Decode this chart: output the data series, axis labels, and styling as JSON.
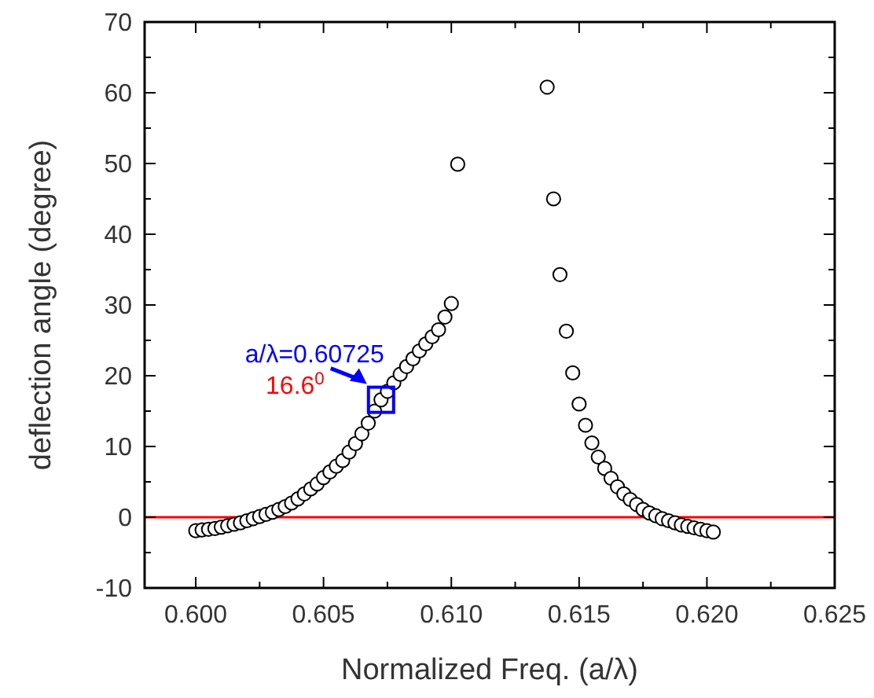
{
  "chart_data": {
    "type": "scatter",
    "xlabel": "Normalized Freq. (a/λ)",
    "ylabel": "deflection angle (degree)",
    "marker": "circle",
    "xlim": [
      0.598,
      0.625
    ],
    "ylim": [
      -10,
      70
    ],
    "xticks": [
      {
        "value": 0.6,
        "label": "0.600"
      },
      {
        "value": 0.6025,
        "label": null
      },
      {
        "value": 0.605,
        "label": "0.605"
      },
      {
        "value": 0.6075,
        "label": null
      },
      {
        "value": 0.61,
        "label": "0.610"
      },
      {
        "value": 0.6125,
        "label": null
      },
      {
        "value": 0.615,
        "label": "0.615"
      },
      {
        "value": 0.6175,
        "label": null
      },
      {
        "value": 0.62,
        "label": "0.620"
      },
      {
        "value": 0.6225,
        "label": null
      },
      {
        "value": 0.625,
        "label": "0.625"
      }
    ],
    "yticks": [
      -10,
      {
        "value": -5,
        "label": null
      },
      0,
      {
        "value": 5,
        "label": null
      },
      10,
      {
        "value": 15,
        "label": null
      },
      20,
      {
        "value": 25,
        "label": null
      },
      30,
      {
        "value": 35,
        "label": null
      },
      40,
      {
        "value": 45,
        "label": null
      },
      50,
      {
        "value": 55,
        "label": null
      },
      60,
      {
        "value": 65,
        "label": null
      },
      70
    ],
    "series": [
      {
        "color": "#000000",
        "x": [
          0.6,
          0.60025,
          0.6005,
          0.60075,
          0.601,
          0.60125,
          0.6015,
          0.60175,
          0.602,
          0.60225,
          0.6025,
          0.60275,
          0.603,
          0.60325,
          0.6035,
          0.60375,
          0.604,
          0.60425,
          0.6045,
          0.60475,
          0.605,
          0.60525,
          0.6055,
          0.60575,
          0.606,
          0.60625,
          0.6065,
          0.60675,
          0.607,
          0.60725,
          0.6075,
          0.60775,
          0.608,
          0.60825,
          0.6085,
          0.60875,
          0.609,
          0.60925,
          0.6095,
          0.60975,
          0.61,
          0.61025,
          0.61375,
          0.614,
          0.61425,
          0.6145,
          0.61475,
          0.615,
          0.61525,
          0.6155,
          0.61575,
          0.616,
          0.61625,
          0.6165,
          0.61675,
          0.617,
          0.61725,
          0.6175,
          0.61775,
          0.618,
          0.61825,
          0.6185,
          0.61875,
          0.619,
          0.61925,
          0.6195,
          0.61975,
          0.62,
          0.62025
        ],
        "values": [
          -1.9,
          -1.8,
          -1.7,
          -1.6,
          -1.4,
          -1.2,
          -1.0,
          -0.8,
          -0.5,
          -0.2,
          0.1,
          0.4,
          0.7,
          1.1,
          1.5,
          2.0,
          2.6,
          3.3,
          4.0,
          4.7,
          5.6,
          6.4,
          7.2,
          8.0,
          9.2,
          10.4,
          11.8,
          13.3,
          15.0,
          16.6,
          17.8,
          19.0,
          20.2,
          21.3,
          22.4,
          23.5,
          24.5,
          25.5,
          26.5,
          28.3,
          30.2,
          49.9,
          60.8,
          45.0,
          34.3,
          26.3,
          20.4,
          16.0,
          13.0,
          10.5,
          8.5,
          6.9,
          5.5,
          4.3,
          3.3,
          2.5,
          1.8,
          1.1,
          0.6,
          0.2,
          -0.2,
          -0.5,
          -0.8,
          -1.1,
          -1.3,
          -1.5,
          -1.7,
          -1.9,
          -2.1
        ]
      }
    ],
    "ref_lines": [
      {
        "axis": "y",
        "value": 0,
        "color": "#ff0000"
      }
    ],
    "annotations": [
      {
        "text": "a/λ=0.60725",
        "x": 0.60725,
        "y": 16.6
      },
      "16.6$^{0}$"
    ]
  }
}
